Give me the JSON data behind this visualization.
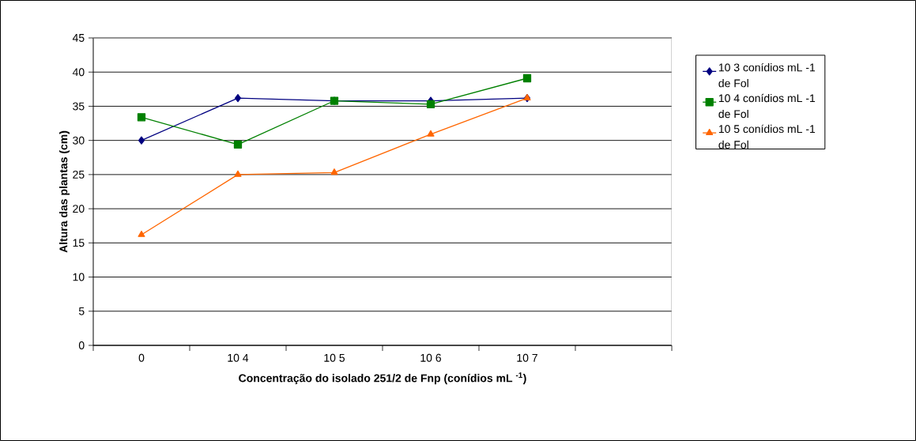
{
  "chart_data": {
    "type": "line",
    "xlabel": "Concentração do isolado 251/2 de Fnp (conídios mL $^{-1}$)",
    "ylabel": "Altura das plantas (cm)",
    "categories": [
      "0",
      "10 4",
      "10 5",
      "10 6",
      "10 7",
      null
    ],
    "series": [
      {
        "name": "10 3 conídios mL -1 de Fol",
        "color": "#000080",
        "marker": "diamond",
        "values": [
          30,
          36.2,
          35.8,
          35.8,
          36.2,
          null
        ]
      },
      {
        "name": "10 4 conídios mL -1 de Fol",
        "color": "#008000",
        "marker": "square",
        "values": [
          33.4,
          29.4,
          35.8,
          35.3,
          39.1,
          null
        ]
      },
      {
        "name": "10 5 conídios mL -1 de Fol",
        "color": "#ff6600",
        "marker": "triangle",
        "values": [
          16.2,
          25,
          25.3,
          30.9,
          36.2,
          null
        ]
      }
    ],
    "ylim": [
      0,
      45
    ],
    "yticks": [
      0,
      5,
      10,
      15,
      20,
      25,
      30,
      35,
      40,
      45
    ],
    "grid": "y",
    "legend": "right",
    "line_style": "solid"
  }
}
